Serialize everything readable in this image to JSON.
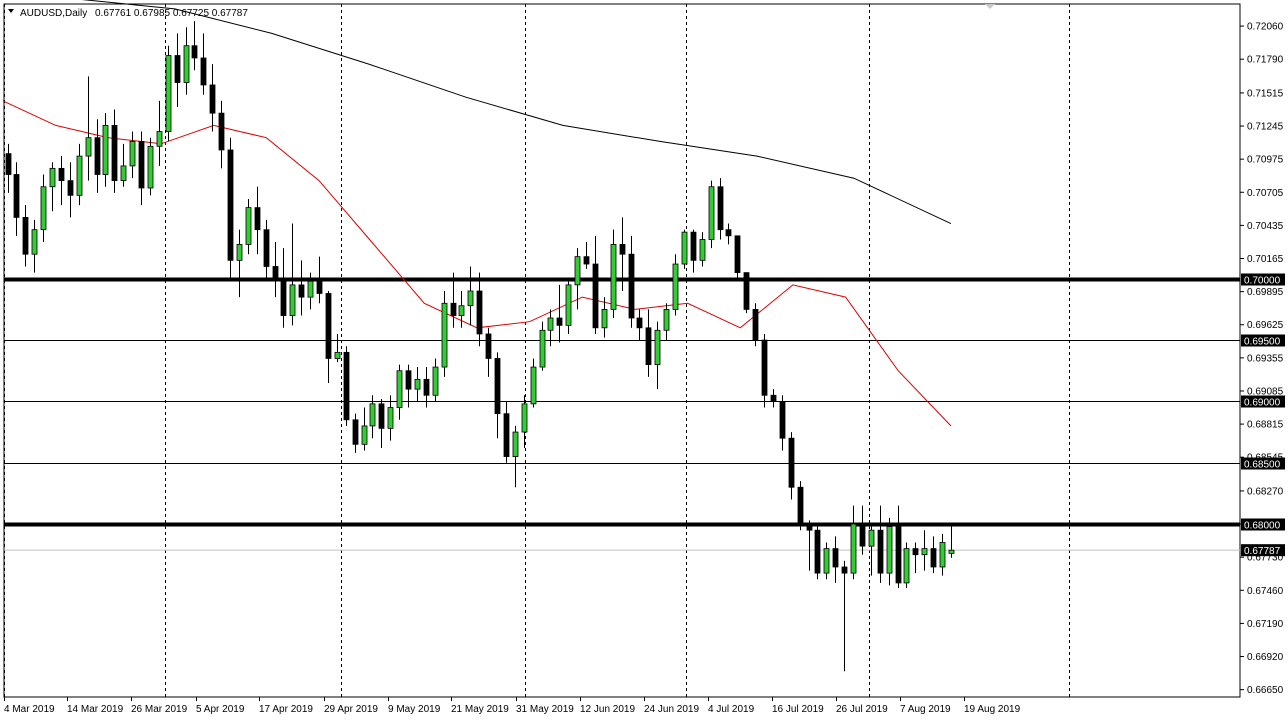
{
  "header": {
    "symbol_timeframe": "AUDUSD,Daily",
    "ohlc_values": "0.67761 0.67985 0.67725 0.67787"
  },
  "chart_data": {
    "type": "candlestick",
    "x_labels": [
      "4 Mar 2019",
      "14 Mar 2019",
      "26 Mar 2019",
      "5 Apr 2019",
      "17 Apr 2019",
      "29 Apr 2019",
      "9 May 2019",
      "21 May 2019",
      "31 May 2019",
      "12 Jun 2019",
      "24 Jun 2019",
      "4 Jul 2019",
      "16 Jul 2019",
      "26 Jul 2019",
      "7 Aug 2019",
      "19 Aug 2019"
    ],
    "y_ticks": [
      "0.72060",
      "0.71790",
      "0.71515",
      "0.71245",
      "0.70975",
      "0.70705",
      "0.70435",
      "0.70165",
      "0.69895",
      "0.69625",
      "0.69355",
      "0.69085",
      "0.68815",
      "0.68545",
      "0.68270",
      "0.68000",
      "0.67730",
      "0.67460",
      "0.67190",
      "0.66920",
      "0.66650"
    ],
    "ylim": [
      0.6659,
      0.7224
    ],
    "grid": "vertical dashed at date labels",
    "horizontal_levels": [
      {
        "value": 0.7,
        "label": "0.70000",
        "weight": "thick"
      },
      {
        "value": 0.695,
        "label": "0.69500",
        "weight": "thin"
      },
      {
        "value": 0.69,
        "label": "0.69000",
        "weight": "thin"
      },
      {
        "value": 0.685,
        "label": "0.68500",
        "weight": "thin"
      },
      {
        "value": 0.68,
        "label": "0.68000",
        "weight": "thick"
      }
    ],
    "current_price": {
      "value": 0.67787,
      "label": "0.67787"
    },
    "ma_slow_black": [
      0.7241,
      0.7228,
      0.722,
      0.72,
      0.7175,
      0.7148,
      0.7125,
      0.7112,
      0.71,
      0.7082,
      0.7045
    ],
    "ma_fast_red": [
      0.7145,
      0.7125,
      0.7115,
      0.711,
      0.7125,
      0.7115,
      0.708,
      0.703,
      0.698,
      0.696,
      0.6965,
      0.6985,
      0.6975,
      0.698,
      0.696,
      0.6995,
      0.6985,
      0.6925,
      0.688
    ],
    "candles": [
      {
        "o": 0.7102,
        "h": 0.711,
        "l": 0.707,
        "c": 0.7085
      },
      {
        "o": 0.7085,
        "h": 0.7095,
        "l": 0.7035,
        "c": 0.705
      },
      {
        "o": 0.705,
        "h": 0.706,
        "l": 0.701,
        "c": 0.702
      },
      {
        "o": 0.702,
        "h": 0.7048,
        "l": 0.7005,
        "c": 0.704
      },
      {
        "o": 0.704,
        "h": 0.7085,
        "l": 0.703,
        "c": 0.7075
      },
      {
        "o": 0.7075,
        "h": 0.7095,
        "l": 0.7055,
        "c": 0.709
      },
      {
        "o": 0.709,
        "h": 0.71,
        "l": 0.706,
        "c": 0.708
      },
      {
        "o": 0.708,
        "h": 0.7095,
        "l": 0.705,
        "c": 0.7068
      },
      {
        "o": 0.7068,
        "h": 0.711,
        "l": 0.706,
        "c": 0.71
      },
      {
        "o": 0.71,
        "h": 0.7165,
        "l": 0.708,
        "c": 0.7115
      },
      {
        "o": 0.7115,
        "h": 0.713,
        "l": 0.707,
        "c": 0.7085
      },
      {
        "o": 0.7085,
        "h": 0.7135,
        "l": 0.7075,
        "c": 0.7125
      },
      {
        "o": 0.7125,
        "h": 0.7138,
        "l": 0.707,
        "c": 0.708
      },
      {
        "o": 0.708,
        "h": 0.711,
        "l": 0.7075,
        "c": 0.7092
      },
      {
        "o": 0.7092,
        "h": 0.712,
        "l": 0.7082,
        "c": 0.7112
      },
      {
        "o": 0.7112,
        "h": 0.712,
        "l": 0.706,
        "c": 0.7074
      },
      {
        "o": 0.7074,
        "h": 0.7115,
        "l": 0.7068,
        "c": 0.7108
      },
      {
        "o": 0.7108,
        "h": 0.7145,
        "l": 0.7092,
        "c": 0.712
      },
      {
        "o": 0.712,
        "h": 0.719,
        "l": 0.7112,
        "c": 0.7182
      },
      {
        "o": 0.7182,
        "h": 0.72,
        "l": 0.714,
        "c": 0.716
      },
      {
        "o": 0.716,
        "h": 0.7205,
        "l": 0.715,
        "c": 0.719
      },
      {
        "o": 0.719,
        "h": 0.721,
        "l": 0.717,
        "c": 0.718
      },
      {
        "o": 0.718,
        "h": 0.72,
        "l": 0.715,
        "c": 0.7158
      },
      {
        "o": 0.7158,
        "h": 0.7175,
        "l": 0.712,
        "c": 0.7135
      },
      {
        "o": 0.7135,
        "h": 0.7145,
        "l": 0.709,
        "c": 0.7105
      },
      {
        "o": 0.7105,
        "h": 0.7115,
        "l": 0.7,
        "c": 0.7015
      },
      {
        "o": 0.7015,
        "h": 0.704,
        "l": 0.6985,
        "c": 0.7028
      },
      {
        "o": 0.7028,
        "h": 0.7065,
        "l": 0.702,
        "c": 0.7058
      },
      {
        "o": 0.7058,
        "h": 0.7075,
        "l": 0.702,
        "c": 0.704
      },
      {
        "o": 0.704,
        "h": 0.7048,
        "l": 0.7,
        "c": 0.701
      },
      {
        "o": 0.701,
        "h": 0.703,
        "l": 0.6985,
        "c": 0.7
      },
      {
        "o": 0.7,
        "h": 0.7025,
        "l": 0.696,
        "c": 0.697
      },
      {
        "o": 0.697,
        "h": 0.7045,
        "l": 0.6962,
        "c": 0.6995
      },
      {
        "o": 0.6995,
        "h": 0.7015,
        "l": 0.697,
        "c": 0.6985
      },
      {
        "o": 0.6985,
        "h": 0.7005,
        "l": 0.6975,
        "c": 0.6998
      },
      {
        "o": 0.6998,
        "h": 0.7018,
        "l": 0.698,
        "c": 0.6988
      },
      {
        "o": 0.6988,
        "h": 0.699,
        "l": 0.6915,
        "c": 0.6935
      },
      {
        "o": 0.6935,
        "h": 0.6955,
        "l": 0.6932,
        "c": 0.694
      },
      {
        "o": 0.694,
        "h": 0.6945,
        "l": 0.688,
        "c": 0.6885
      },
      {
        "o": 0.6885,
        "h": 0.689,
        "l": 0.6858,
        "c": 0.6865
      },
      {
        "o": 0.6865,
        "h": 0.6895,
        "l": 0.686,
        "c": 0.688
      },
      {
        "o": 0.688,
        "h": 0.6905,
        "l": 0.687,
        "c": 0.6898
      },
      {
        "o": 0.6898,
        "h": 0.6902,
        "l": 0.6862,
        "c": 0.6878
      },
      {
        "o": 0.6878,
        "h": 0.6905,
        "l": 0.6868,
        "c": 0.6895
      },
      {
        "o": 0.6895,
        "h": 0.693,
        "l": 0.6885,
        "c": 0.6925
      },
      {
        "o": 0.6925,
        "h": 0.693,
        "l": 0.6895,
        "c": 0.691
      },
      {
        "o": 0.691,
        "h": 0.6928,
        "l": 0.69,
        "c": 0.6918
      },
      {
        "o": 0.6918,
        "h": 0.6928,
        "l": 0.6895,
        "c": 0.6905
      },
      {
        "o": 0.6905,
        "h": 0.6935,
        "l": 0.69,
        "c": 0.6928
      },
      {
        "o": 0.6928,
        "h": 0.699,
        "l": 0.692,
        "c": 0.698
      },
      {
        "o": 0.698,
        "h": 0.7005,
        "l": 0.696,
        "c": 0.697
      },
      {
        "o": 0.697,
        "h": 0.699,
        "l": 0.696,
        "c": 0.6978
      },
      {
        "o": 0.6978,
        "h": 0.701,
        "l": 0.6962,
        "c": 0.699
      },
      {
        "o": 0.699,
        "h": 0.7005,
        "l": 0.6945,
        "c": 0.6955
      },
      {
        "o": 0.6955,
        "h": 0.696,
        "l": 0.692,
        "c": 0.6935
      },
      {
        "o": 0.6935,
        "h": 0.694,
        "l": 0.687,
        "c": 0.689
      },
      {
        "o": 0.689,
        "h": 0.69,
        "l": 0.685,
        "c": 0.6855
      },
      {
        "o": 0.6855,
        "h": 0.688,
        "l": 0.683,
        "c": 0.6875
      },
      {
        "o": 0.6875,
        "h": 0.6905,
        "l": 0.6862,
        "c": 0.6898
      },
      {
        "o": 0.6898,
        "h": 0.6935,
        "l": 0.6895,
        "c": 0.6928
      },
      {
        "o": 0.6928,
        "h": 0.6965,
        "l": 0.6925,
        "c": 0.6958
      },
      {
        "o": 0.6958,
        "h": 0.6975,
        "l": 0.6945,
        "c": 0.6968
      },
      {
        "o": 0.6968,
        "h": 0.6995,
        "l": 0.6948,
        "c": 0.6962
      },
      {
        "o": 0.6962,
        "h": 0.7,
        "l": 0.6955,
        "c": 0.6995
      },
      {
        "o": 0.6995,
        "h": 0.7025,
        "l": 0.6975,
        "c": 0.7018
      },
      {
        "o": 0.7018,
        "h": 0.703,
        "l": 0.7008,
        "c": 0.7012
      },
      {
        "o": 0.7012,
        "h": 0.7035,
        "l": 0.6955,
        "c": 0.696
      },
      {
        "o": 0.696,
        "h": 0.6985,
        "l": 0.6952,
        "c": 0.6975
      },
      {
        "o": 0.6975,
        "h": 0.704,
        "l": 0.6968,
        "c": 0.7028
      },
      {
        "o": 0.7028,
        "h": 0.705,
        "l": 0.699,
        "c": 0.702
      },
      {
        "o": 0.702,
        "h": 0.7035,
        "l": 0.696,
        "c": 0.6968
      },
      {
        "o": 0.6968,
        "h": 0.6975,
        "l": 0.695,
        "c": 0.696
      },
      {
        "o": 0.696,
        "h": 0.6975,
        "l": 0.692,
        "c": 0.693
      },
      {
        "o": 0.693,
        "h": 0.6965,
        "l": 0.691,
        "c": 0.6958
      },
      {
        "o": 0.6958,
        "h": 0.698,
        "l": 0.695,
        "c": 0.6975
      },
      {
        "o": 0.6975,
        "h": 0.702,
        "l": 0.697,
        "c": 0.7012
      },
      {
        "o": 0.7012,
        "h": 0.704,
        "l": 0.7008,
        "c": 0.7038
      },
      {
        "o": 0.7038,
        "h": 0.704,
        "l": 0.7005,
        "c": 0.7015
      },
      {
        "o": 0.7015,
        "h": 0.7038,
        "l": 0.701,
        "c": 0.7032
      },
      {
        "o": 0.7032,
        "h": 0.708,
        "l": 0.7025,
        "c": 0.7075
      },
      {
        "o": 0.7075,
        "h": 0.7082,
        "l": 0.7032,
        "c": 0.704
      },
      {
        "o": 0.704,
        "h": 0.7045,
        "l": 0.7028,
        "c": 0.7035
      },
      {
        "o": 0.7035,
        "h": 0.7035,
        "l": 0.6998,
        "c": 0.7005
      },
      {
        "o": 0.7005,
        "h": 0.7005,
        "l": 0.6972,
        "c": 0.6975
      },
      {
        "o": 0.6975,
        "h": 0.698,
        "l": 0.6945,
        "c": 0.695
      },
      {
        "o": 0.695,
        "h": 0.6955,
        "l": 0.6895,
        "c": 0.6905
      },
      {
        "o": 0.6905,
        "h": 0.691,
        "l": 0.6895,
        "c": 0.69
      },
      {
        "o": 0.69,
        "h": 0.6905,
        "l": 0.686,
        "c": 0.687
      },
      {
        "o": 0.687,
        "h": 0.6875,
        "l": 0.682,
        "c": 0.683
      },
      {
        "o": 0.683,
        "h": 0.6835,
        "l": 0.6795,
        "c": 0.68
      },
      {
        "o": 0.68,
        "h": 0.6803,
        "l": 0.6762,
        "c": 0.6795
      },
      {
        "o": 0.6795,
        "h": 0.68,
        "l": 0.6755,
        "c": 0.676
      },
      {
        "o": 0.676,
        "h": 0.6785,
        "l": 0.6755,
        "c": 0.678
      },
      {
        "o": 0.678,
        "h": 0.679,
        "l": 0.6752,
        "c": 0.6765
      },
      {
        "o": 0.6765,
        "h": 0.677,
        "l": 0.668,
        "c": 0.676
      },
      {
        "o": 0.676,
        "h": 0.6815,
        "l": 0.6755,
        "c": 0.68
      },
      {
        "o": 0.68,
        "h": 0.6815,
        "l": 0.6775,
        "c": 0.6782
      },
      {
        "o": 0.6782,
        "h": 0.6798,
        "l": 0.6758,
        "c": 0.6795
      },
      {
        "o": 0.6795,
        "h": 0.6815,
        "l": 0.6752,
        "c": 0.676
      },
      {
        "o": 0.676,
        "h": 0.6805,
        "l": 0.675,
        "c": 0.6798
      },
      {
        "o": 0.6798,
        "h": 0.6815,
        "l": 0.6748,
        "c": 0.6752
      },
      {
        "o": 0.6752,
        "h": 0.6785,
        "l": 0.6748,
        "c": 0.678
      },
      {
        "o": 0.678,
        "h": 0.6785,
        "l": 0.676,
        "c": 0.6775
      },
      {
        "o": 0.6775,
        "h": 0.6795,
        "l": 0.6762,
        "c": 0.678
      },
      {
        "o": 0.678,
        "h": 0.679,
        "l": 0.676,
        "c": 0.6765
      },
      {
        "o": 0.6765,
        "h": 0.6792,
        "l": 0.6758,
        "c": 0.6785
      },
      {
        "o": 0.67761,
        "h": 0.67985,
        "l": 0.67725,
        "c": 0.67787
      }
    ]
  },
  "colors": {
    "background": "#ffffff",
    "bull_candle": "#32cd32",
    "bear_candle": "#000000",
    "ma_fast": "#e00000",
    "ma_slow": "#000000",
    "level_line": "#000000",
    "current_price_line": "#c0c0c0",
    "grid": "#000000"
  }
}
